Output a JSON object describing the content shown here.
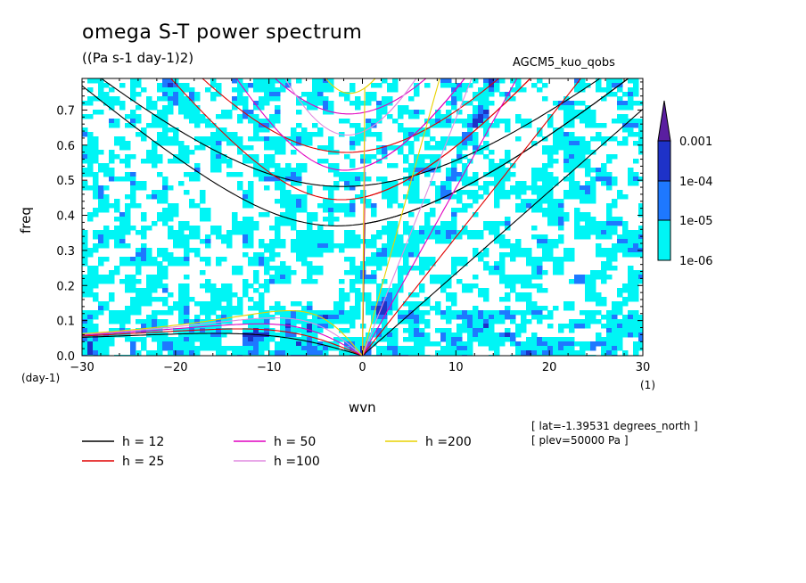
{
  "title": "omega S-T power spectrum",
  "units": "((Pa s-1 day-1)2)",
  "run_name": "AGCM5_kuo_qobs",
  "info": [
    "[ lat=-1.39531 degrees_north ]",
    "[ plev=50000 Pa ]"
  ],
  "chart_data": {
    "type": "heatmap",
    "title": "omega S-T power spectrum",
    "xlabel": "wvn",
    "ylabel": "freq",
    "x_unit": "(1)",
    "y_unit": "(day-1)",
    "xlim": [
      -30,
      30
    ],
    "ylim": [
      0,
      0.79
    ],
    "x_ticks": [
      -30,
      -20,
      -10,
      0,
      10,
      20,
      30
    ],
    "y_ticks": [
      0.0,
      0.1,
      0.2,
      0.3,
      0.4,
      0.5,
      0.6,
      0.7
    ],
    "colorbar": {
      "levels": [
        "1e-06",
        "1e-05",
        "1e-04",
        "0.001"
      ],
      "colors": [
        "#00f5f5",
        "#1e78ff",
        "#1e32c8",
        "#5a1ea0"
      ]
    },
    "dispersion_curves": [
      {
        "label": "h = 12",
        "h": 12,
        "color": "#000000"
      },
      {
        "label": "h = 25",
        "h": 25,
        "color": "#e00000"
      },
      {
        "label": "h = 50",
        "h": 50,
        "color": "#e000c0"
      },
      {
        "label": "h =100",
        "h": 100,
        "color": "#e08ce0"
      },
      {
        "label": "h =200",
        "h": 200,
        "color": "#e8d200"
      }
    ]
  }
}
